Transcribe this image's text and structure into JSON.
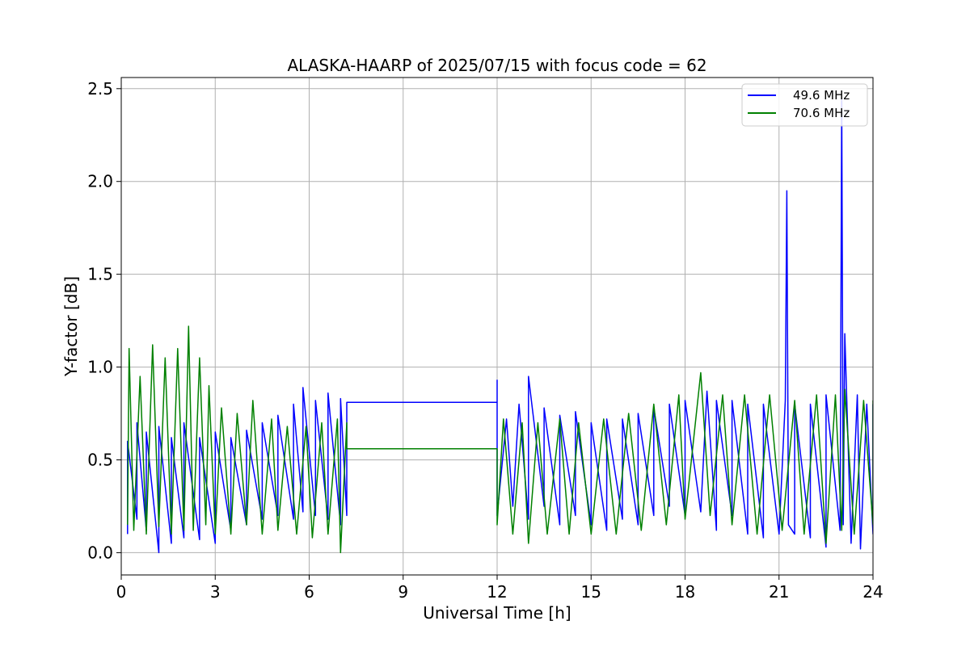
{
  "chart_data": {
    "type": "line",
    "title": "ALASKA-HAARP of 2025/07/15 with focus code = 62",
    "xlabel": "Universal Time [h]",
    "ylabel": "Y-factor [dB]",
    "xlim": [
      0,
      24
    ],
    "ylim": [
      -0.12,
      2.56
    ],
    "xticks": [
      0,
      3,
      6,
      9,
      12,
      15,
      18,
      21,
      24
    ],
    "xtick_labels": [
      "0",
      "3",
      "6",
      "9",
      "12",
      "15",
      "18",
      "21",
      "24"
    ],
    "yticks": [
      0.0,
      0.5,
      1.0,
      1.5,
      2.0,
      2.5
    ],
    "ytick_labels": [
      "0.0",
      "0.5",
      "1.0",
      "1.5",
      "2.0",
      "2.5"
    ],
    "grid": true,
    "legend_position": "top-right",
    "series": [
      {
        "name": "49.6 MHz",
        "color": "#0000ff",
        "points": [
          [
            0.2,
            0.1
          ],
          [
            0.2,
            0.6
          ],
          [
            0.5,
            0.18
          ],
          [
            0.5,
            0.7
          ],
          [
            0.8,
            0.12
          ],
          [
            0.8,
            0.65
          ],
          [
            1.2,
            0.0
          ],
          [
            1.2,
            0.68
          ],
          [
            1.6,
            0.05
          ],
          [
            1.6,
            0.62
          ],
          [
            2.0,
            0.08
          ],
          [
            2.0,
            0.7
          ],
          [
            2.5,
            0.07
          ],
          [
            2.5,
            0.62
          ],
          [
            3.0,
            0.05
          ],
          [
            3.0,
            0.65
          ],
          [
            3.5,
            0.12
          ],
          [
            3.5,
            0.62
          ],
          [
            4.0,
            0.15
          ],
          [
            4.0,
            0.66
          ],
          [
            4.5,
            0.18
          ],
          [
            4.5,
            0.7
          ],
          [
            5.0,
            0.2
          ],
          [
            5.0,
            0.74
          ],
          [
            5.5,
            0.18
          ],
          [
            5.5,
            0.8
          ],
          [
            5.8,
            0.22
          ],
          [
            5.8,
            0.89
          ],
          [
            6.2,
            0.2
          ],
          [
            6.2,
            0.82
          ],
          [
            6.6,
            0.18
          ],
          [
            6.6,
            0.86
          ],
          [
            7.0,
            0.15
          ],
          [
            7.0,
            0.83
          ],
          [
            7.2,
            0.2
          ],
          [
            7.2,
            0.81
          ],
          [
            12.0,
            0.81
          ],
          [
            12.0,
            0.93
          ],
          [
            12.0,
            0.2
          ],
          [
            12.3,
            0.72
          ],
          [
            12.5,
            0.25
          ],
          [
            12.7,
            0.8
          ],
          [
            13.0,
            0.18
          ],
          [
            13.0,
            0.95
          ],
          [
            13.5,
            0.25
          ],
          [
            13.5,
            0.78
          ],
          [
            14.0,
            0.15
          ],
          [
            14.0,
            0.74
          ],
          [
            14.5,
            0.2
          ],
          [
            14.5,
            0.76
          ],
          [
            15.0,
            0.15
          ],
          [
            15.0,
            0.7
          ],
          [
            15.5,
            0.12
          ],
          [
            15.5,
            0.72
          ],
          [
            16.0,
            0.18
          ],
          [
            16.0,
            0.72
          ],
          [
            16.5,
            0.15
          ],
          [
            16.5,
            0.75
          ],
          [
            17.0,
            0.2
          ],
          [
            17.0,
            0.78
          ],
          [
            17.5,
            0.25
          ],
          [
            17.5,
            0.8
          ],
          [
            18.0,
            0.2
          ],
          [
            18.0,
            0.82
          ],
          [
            18.5,
            0.22
          ],
          [
            18.7,
            0.87
          ],
          [
            19.0,
            0.12
          ],
          [
            19.0,
            0.82
          ],
          [
            19.5,
            0.2
          ],
          [
            19.5,
            0.82
          ],
          [
            20.0,
            0.1
          ],
          [
            20.0,
            0.8
          ],
          [
            20.5,
            0.08
          ],
          [
            20.5,
            0.8
          ],
          [
            21.0,
            0.1
          ],
          [
            21.2,
            0.82
          ],
          [
            21.25,
            1.95
          ],
          [
            21.3,
            0.15
          ],
          [
            21.5,
            0.1
          ],
          [
            21.5,
            0.8
          ],
          [
            22.0,
            0.08
          ],
          [
            22.0,
            0.8
          ],
          [
            22.5,
            0.03
          ],
          [
            22.5,
            0.85
          ],
          [
            22.95,
            0.12
          ],
          [
            23.0,
            2.45
          ],
          [
            23.05,
            0.15
          ],
          [
            23.1,
            1.18
          ],
          [
            23.3,
            0.05
          ],
          [
            23.5,
            0.85
          ],
          [
            23.6,
            0.02
          ],
          [
            23.8,
            0.8
          ],
          [
            24.0,
            0.1
          ],
          [
            24.0,
            0.8
          ]
        ]
      },
      {
        "name": "70.6 MHz",
        "color": "#008000",
        "points": [
          [
            0.2,
            0.15
          ],
          [
            0.25,
            1.1
          ],
          [
            0.4,
            0.12
          ],
          [
            0.6,
            0.95
          ],
          [
            0.8,
            0.1
          ],
          [
            1.0,
            1.12
          ],
          [
            1.2,
            0.14
          ],
          [
            1.4,
            1.05
          ],
          [
            1.6,
            0.1
          ],
          [
            1.8,
            1.1
          ],
          [
            2.0,
            0.12
          ],
          [
            2.15,
            1.22
          ],
          [
            2.3,
            0.12
          ],
          [
            2.5,
            1.05
          ],
          [
            2.7,
            0.15
          ],
          [
            2.8,
            0.9
          ],
          [
            3.0,
            0.1
          ],
          [
            3.2,
            0.78
          ],
          [
            3.5,
            0.1
          ],
          [
            3.7,
            0.75
          ],
          [
            4.0,
            0.15
          ],
          [
            4.2,
            0.82
          ],
          [
            4.5,
            0.1
          ],
          [
            4.8,
            0.72
          ],
          [
            5.0,
            0.12
          ],
          [
            5.3,
            0.68
          ],
          [
            5.6,
            0.1
          ],
          [
            5.9,
            0.68
          ],
          [
            6.1,
            0.08
          ],
          [
            6.4,
            0.7
          ],
          [
            6.6,
            0.1
          ],
          [
            6.9,
            0.72
          ],
          [
            7.0,
            0.0
          ],
          [
            7.2,
            0.7
          ],
          [
            7.2,
            0.56
          ],
          [
            12.0,
            0.56
          ],
          [
            12.0,
            0.15
          ],
          [
            12.2,
            0.72
          ],
          [
            12.5,
            0.1
          ],
          [
            12.8,
            0.7
          ],
          [
            13.0,
            0.05
          ],
          [
            13.3,
            0.7
          ],
          [
            13.6,
            0.1
          ],
          [
            14.0,
            0.72
          ],
          [
            14.3,
            0.1
          ],
          [
            14.6,
            0.7
          ],
          [
            15.0,
            0.1
          ],
          [
            15.4,
            0.72
          ],
          [
            15.8,
            0.1
          ],
          [
            16.2,
            0.75
          ],
          [
            16.6,
            0.12
          ],
          [
            17.0,
            0.8
          ],
          [
            17.4,
            0.15
          ],
          [
            17.8,
            0.85
          ],
          [
            18.0,
            0.18
          ],
          [
            18.5,
            0.97
          ],
          [
            18.8,
            0.2
          ],
          [
            19.2,
            0.85
          ],
          [
            19.5,
            0.15
          ],
          [
            19.9,
            0.85
          ],
          [
            20.3,
            0.1
          ],
          [
            20.7,
            0.85
          ],
          [
            21.1,
            0.12
          ],
          [
            21.5,
            0.82
          ],
          [
            21.8,
            0.1
          ],
          [
            22.2,
            0.85
          ],
          [
            22.5,
            0.05
          ],
          [
            22.8,
            0.85
          ],
          [
            23.0,
            0.12
          ],
          [
            23.1,
            0.88
          ],
          [
            23.4,
            0.1
          ],
          [
            23.7,
            0.82
          ],
          [
            24.0,
            0.15
          ],
          [
            24.0,
            0.82
          ]
        ]
      }
    ]
  }
}
